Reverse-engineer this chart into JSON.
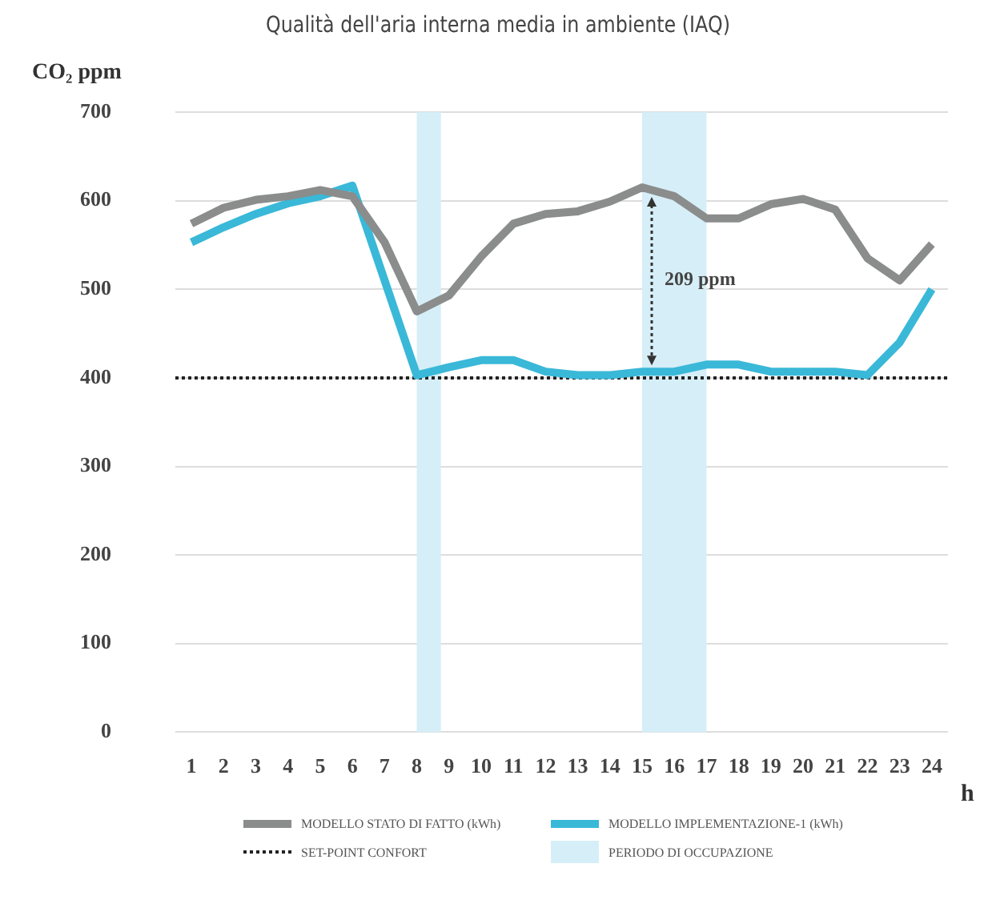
{
  "chart_data": {
    "type": "line",
    "title": "Qualità dell'aria interna media in ambiente (IAQ)",
    "ylabel": "CO₂ ppm",
    "xlabel": "h",
    "x": [
      1,
      2,
      3,
      4,
      5,
      6,
      7,
      8,
      9,
      10,
      11,
      12,
      13,
      14,
      15,
      16,
      17,
      18,
      19,
      20,
      21,
      22,
      23,
      24
    ],
    "series": [
      {
        "name": "MODELLO STATO DI FATTO (kWh)",
        "color": "#8a8d8c",
        "values": [
          574,
          592,
          601,
          605,
          612,
          605,
          553,
          475,
          493,
          537,
          574,
          585,
          588,
          599,
          615,
          605,
          580,
          580,
          596,
          602,
          590,
          535,
          510,
          551
        ]
      },
      {
        "name": "MODELLO IMPLEMENTAZIONE-1 (kWh)",
        "color": "#3ab8d8",
        "values": [
          553,
          570,
          585,
          597,
          605,
          617,
          510,
          403,
          412,
          420,
          420,
          407,
          403,
          403,
          407,
          407,
          415,
          415,
          407,
          407,
          407,
          403,
          440,
          500
        ]
      }
    ],
    "xlim": [
      0.5,
      24.5
    ],
    "xticks": [
      1,
      2,
      3,
      4,
      5,
      6,
      7,
      8,
      9,
      10,
      11,
      12,
      13,
      14,
      15,
      16,
      17,
      18,
      19,
      20,
      21,
      22,
      23,
      24
    ],
    "ylim": [
      0,
      700
    ],
    "yticks": [
      0,
      100,
      200,
      300,
      400,
      500,
      600,
      700
    ],
    "ref_lines": [
      {
        "axis": "y",
        "value": 400,
        "label": "SET-POINT CONFORT",
        "color": "#222222",
        "line_style": "dotted"
      }
    ],
    "bands": [
      {
        "axis": "x",
        "from": 8,
        "to": 8.75,
        "label": "PERIODO DI OCCUPAZIONE",
        "color": "#d6eef7"
      },
      {
        "axis": "x",
        "from": 15,
        "to": 17,
        "color": "#d6eef7"
      }
    ],
    "annotations": [
      {
        "text": "209 ppm",
        "x": 15,
        "y": 510
      }
    ],
    "grid": "y",
    "legend": "bottom",
    "marker": "none",
    "line_style": "solid"
  }
}
